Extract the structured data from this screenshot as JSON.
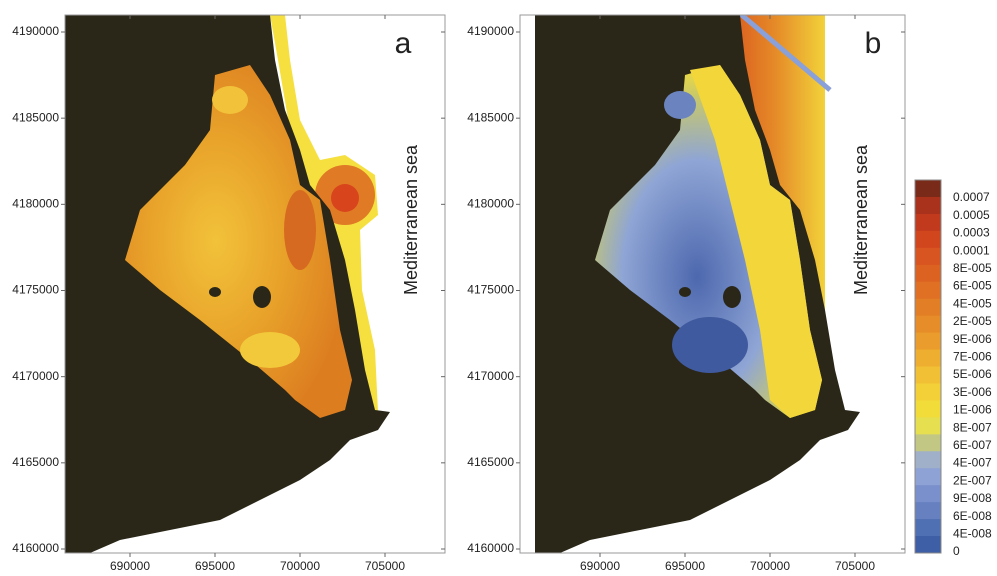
{
  "panels": [
    {
      "label": "a",
      "sea_label": "Mediterranean sea",
      "yticks": [
        4190000,
        4185000,
        4180000,
        4175000,
        4170000,
        4165000,
        4160000
      ],
      "xticks": [
        690000,
        695000,
        700000,
        705000
      ]
    },
    {
      "label": "b",
      "sea_label": "Mediterranean sea",
      "yticks": [
        4190000,
        4185000,
        4180000,
        4175000,
        4170000,
        4165000,
        4160000
      ],
      "xticks": [
        690000,
        695000,
        700000,
        705000
      ]
    }
  ],
  "colorbar": {
    "labels": [
      "0.0007",
      "0.0005",
      "0.0003",
      "0.0001",
      "8E-005",
      "6E-005",
      "4E-005",
      "2E-005",
      "9E-006",
      "7E-006",
      "5E-006",
      "3E-006",
      "1E-006",
      "8E-007",
      "6E-007",
      "4E-007",
      "2E-007",
      "9E-008",
      "6E-008",
      "4E-008",
      "0"
    ]
  }
}
